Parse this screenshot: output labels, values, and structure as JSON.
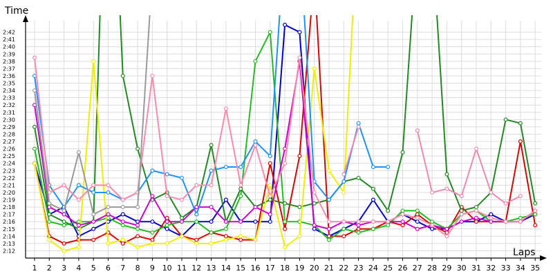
{
  "chart_data": {
    "type": "line",
    "ylabel": "Time",
    "xlabel": "Laps",
    "x": [
      1,
      2,
      3,
      4,
      5,
      6,
      7,
      8,
      9,
      10,
      11,
      12,
      13,
      14,
      15,
      16,
      17,
      18,
      19,
      20,
      21,
      22,
      23,
      24,
      25,
      26,
      27,
      28,
      29,
      30,
      31,
      32,
      33,
      34,
      35
    ],
    "y_ticks": [
      "2:12",
      "2:13",
      "2:14",
      "2:15",
      "2:16",
      "2:17",
      "2:18",
      "2:19",
      "2:20",
      "2:21",
      "2:22",
      "2:23",
      "2:24",
      "2:25",
      "2:26",
      "2:27",
      "2:28",
      "2:29",
      "2:30",
      "2:31",
      "2:32",
      "2:33",
      "2:34",
      "2:35",
      "2:36",
      "2:37",
      "2:38",
      "2:39",
      "2:40",
      "2:41",
      "2:42"
    ],
    "ylim_seconds": [
      131,
      163
    ],
    "grid": true,
    "series": [
      {
        "color": "#0000cc",
        "values": [
          144,
          137,
          138,
          134,
          135,
          136,
          137,
          136,
          136,
          135,
          134,
          136,
          136,
          139,
          136,
          136,
          136,
          163,
          162,
          135,
          134,
          135,
          136,
          139,
          136,
          137,
          136,
          135,
          135,
          136,
          136,
          137,
          136,
          136,
          137
        ]
      },
      {
        "color": "#dd0000",
        "values": [
          144,
          134,
          133,
          133.5,
          133.5,
          134.5,
          133,
          134,
          133.5,
          136.5,
          134,
          133.5,
          134.5,
          134,
          133.5,
          133.5,
          144,
          135,
          145,
          170,
          134,
          134,
          135,
          135,
          136,
          135.5,
          137,
          135.5,
          134.5,
          138,
          136,
          136,
          136,
          147,
          135.5
        ]
      },
      {
        "color": "#22bb22",
        "values": [
          146,
          136,
          135.5,
          136,
          136,
          136.5,
          135.5,
          135,
          134.5,
          135.5,
          136,
          136,
          134.5,
          135,
          139.5,
          158,
          162,
          136,
          136,
          135.5,
          133.5,
          135,
          134.5,
          135,
          135.5,
          137.5,
          137.5,
          136,
          135,
          137,
          137.5,
          136,
          136,
          136.5,
          137
        ]
      },
      {
        "color": "#228822",
        "values": [
          149,
          137,
          136,
          135,
          136,
          200,
          156,
          146,
          139,
          140,
          136.5,
          138,
          146.5,
          136,
          140.5,
          138,
          139,
          138.5,
          138,
          138.5,
          139,
          141.5,
          142,
          140.5,
          137.5,
          145.5,
          175,
          175,
          142.5,
          137.5,
          138,
          140,
          150,
          149.5,
          138.5
        ]
      },
      {
        "color": "#eeee00",
        "values": [
          144,
          133.5,
          132,
          132.5,
          158,
          133,
          133.5,
          132.5,
          133,
          133,
          134,
          133,
          133,
          133.5,
          134,
          133.5,
          141,
          132.5,
          134,
          157,
          143,
          140,
          180,
          180,
          0,
          0,
          0,
          0,
          0,
          0,
          0,
          0,
          0,
          0,
          0
        ]
      },
      {
        "color": "#cc00cc",
        "values": [
          152,
          138,
          137,
          135.5,
          136,
          137,
          136,
          135.5,
          139.5,
          136,
          136,
          138,
          138,
          136,
          136,
          138,
          137,
          146,
          158,
          135.5,
          135,
          136,
          135.5,
          136,
          136,
          136,
          135,
          135.5,
          135,
          136,
          136.5,
          136,
          136,
          136,
          137.5
        ]
      },
      {
        "color": "#1e90ff",
        "values": [
          156,
          141,
          138,
          141,
          140,
          140,
          139,
          140,
          143,
          142.5,
          142,
          137,
          143,
          143.5,
          143.5,
          147,
          145,
          175,
          175,
          141.5,
          139,
          141.5,
          149.5,
          143.5,
          143.5,
          0,
          0,
          0,
          0,
          0,
          0,
          0,
          0,
          0,
          0
        ]
      },
      {
        "color": "#ff88aa",
        "values": [
          158.5,
          140,
          141,
          139,
          141,
          141,
          139,
          140,
          156,
          139.5,
          139,
          141,
          141,
          151.5,
          141,
          146.5,
          139.5,
          144,
          158.5,
          140,
          136,
          136,
          136,
          136,
          136,
          137,
          136.5,
          135.5,
          134,
          137,
          137.5,
          136.5,
          136,
          136,
          137.5
        ]
      },
      {
        "color": "#f088b0",
        "values": [
          0,
          0,
          0,
          0,
          0,
          0,
          0,
          0,
          0,
          0,
          0,
          0,
          0,
          0,
          0,
          0,
          0,
          0,
          0,
          0,
          0,
          142.5,
          149,
          0,
          0,
          0,
          148.5,
          140,
          140.5,
          139.5,
          146,
          140,
          138.5,
          139.5,
          0
        ]
      },
      {
        "color": "#999999",
        "values": [
          154,
          138.5,
          137.5,
          145.5,
          137,
          138,
          138,
          138,
          170,
          0,
          0,
          0,
          0,
          0,
          0,
          0,
          0,
          0,
          0,
          0,
          0,
          0,
          0,
          0,
          0,
          0,
          0,
          0,
          0,
          0,
          0,
          0,
          0,
          0,
          0
        ]
      }
    ]
  }
}
